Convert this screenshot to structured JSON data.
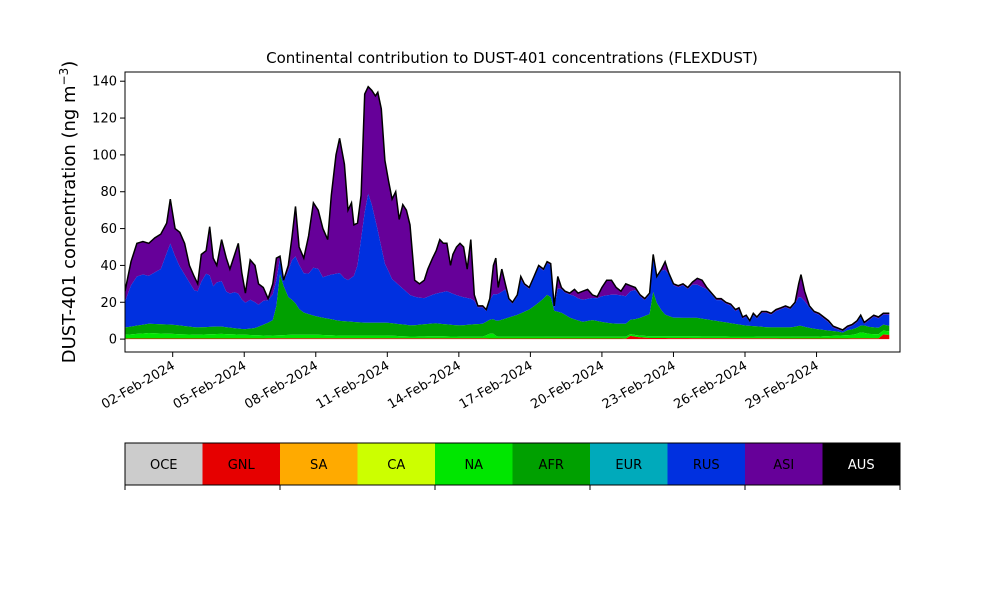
{
  "chart_data": {
    "type": "area",
    "stacked": true,
    "title": "Continental contribution to DUST-401 concentrations (FLEXDUST)",
    "ylabel_prefix": "DUST-401 concentration (ng m",
    "ylabel_sup": "−3",
    "ylabel_suffix": ")",
    "xlabel": "",
    "ylim": [
      -7,
      145
    ],
    "yticks": [
      0,
      20,
      40,
      60,
      80,
      100,
      120,
      140
    ],
    "x_start": "2024-01-31",
    "x_end": "2024-03-02",
    "xlim": [
      "2024-01-31T00:00",
      "2024-03-03T12:00"
    ],
    "xticks": [
      "02-Feb-2024",
      "05-Feb-2024",
      "08-Feb-2024",
      "11-Feb-2024",
      "14-Feb-2024",
      "17-Feb-2024",
      "20-Feb-2024",
      "23-Feb-2024",
      "26-Feb-2024",
      "29-Feb-2024"
    ],
    "xtick_dates": [
      "2024-02-02",
      "2024-02-05",
      "2024-02-08",
      "2024-02-11",
      "2024-02-14",
      "2024-02-17",
      "2024-02-20",
      "2024-02-23",
      "2024-02-26",
      "2024-02-29"
    ],
    "legend_placement": "separate colorbar below plot",
    "total": [
      [
        0,
        26
      ],
      [
        0.25,
        42
      ],
      [
        0.5,
        52
      ],
      [
        0.75,
        53
      ],
      [
        1,
        52
      ],
      [
        1.25,
        55
      ],
      [
        1.5,
        57
      ],
      [
        1.75,
        63
      ],
      [
        1.9,
        76
      ],
      [
        2.1,
        60
      ],
      [
        2.3,
        58
      ],
      [
        2.5,
        52
      ],
      [
        2.7,
        40
      ],
      [
        2.9,
        34
      ],
      [
        3.05,
        30
      ],
      [
        3.2,
        46
      ],
      [
        3.4,
        48
      ],
      [
        3.55,
        61
      ],
      [
        3.7,
        44
      ],
      [
        3.85,
        40
      ],
      [
        4.05,
        54
      ],
      [
        4.25,
        44
      ],
      [
        4.4,
        38
      ],
      [
        4.6,
        46
      ],
      [
        4.75,
        52
      ],
      [
        4.9,
        36
      ],
      [
        5.05,
        25
      ],
      [
        5.25,
        43
      ],
      [
        5.45,
        40
      ],
      [
        5.6,
        30
      ],
      [
        5.8,
        28
      ],
      [
        6.0,
        22
      ],
      [
        6.2,
        30
      ],
      [
        6.35,
        44
      ],
      [
        6.5,
        45
      ],
      [
        6.65,
        32
      ],
      [
        6.85,
        40
      ],
      [
        7.0,
        55
      ],
      [
        7.15,
        72
      ],
      [
        7.3,
        50
      ],
      [
        7.5,
        44
      ],
      [
        7.7,
        56
      ],
      [
        7.9,
        74
      ],
      [
        8.1,
        70
      ],
      [
        8.3,
        60
      ],
      [
        8.5,
        54
      ],
      [
        8.65,
        78
      ],
      [
        8.85,
        100
      ],
      [
        9.0,
        109
      ],
      [
        9.2,
        95
      ],
      [
        9.35,
        70
      ],
      [
        9.5,
        74
      ],
      [
        9.6,
        62
      ],
      [
        9.75,
        63
      ],
      [
        9.9,
        78
      ],
      [
        10.05,
        133
      ],
      [
        10.2,
        137
      ],
      [
        10.35,
        135
      ],
      [
        10.5,
        132
      ],
      [
        10.6,
        134
      ],
      [
        10.75,
        125
      ],
      [
        10.9,
        97
      ],
      [
        11.05,
        86
      ],
      [
        11.2,
        76
      ],
      [
        11.35,
        80
      ],
      [
        11.5,
        65
      ],
      [
        11.65,
        73
      ],
      [
        11.8,
        70
      ],
      [
        11.95,
        62
      ],
      [
        12.15,
        32
      ],
      [
        12.35,
        30
      ],
      [
        12.55,
        32
      ],
      [
        12.7,
        38
      ],
      [
        12.9,
        44
      ],
      [
        13.05,
        48
      ],
      [
        13.2,
        54
      ],
      [
        13.35,
        52
      ],
      [
        13.5,
        52
      ],
      [
        13.65,
        40
      ],
      [
        13.75,
        46
      ],
      [
        13.9,
        50
      ],
      [
        14.05,
        52
      ],
      [
        14.2,
        50
      ],
      [
        14.35,
        38
      ],
      [
        14.5,
        54
      ],
      [
        14.65,
        24
      ],
      [
        14.8,
        18
      ],
      [
        15.0,
        18
      ],
      [
        15.15,
        16
      ],
      [
        15.3,
        22
      ],
      [
        15.45,
        40
      ],
      [
        15.55,
        44
      ],
      [
        15.65,
        28
      ],
      [
        15.8,
        38
      ],
      [
        15.95,
        30
      ],
      [
        16.1,
        22
      ],
      [
        16.25,
        20
      ],
      [
        16.45,
        24
      ],
      [
        16.6,
        34
      ],
      [
        16.75,
        30
      ],
      [
        16.95,
        28
      ],
      [
        17.15,
        34
      ],
      [
        17.35,
        40
      ],
      [
        17.55,
        38
      ],
      [
        17.7,
        42
      ],
      [
        17.85,
        41
      ],
      [
        18.0,
        18
      ],
      [
        18.15,
        34
      ],
      [
        18.3,
        28
      ],
      [
        18.45,
        26
      ],
      [
        18.65,
        25
      ],
      [
        18.85,
        27
      ],
      [
        19.0,
        25
      ],
      [
        19.2,
        26
      ],
      [
        19.4,
        27
      ],
      [
        19.6,
        24
      ],
      [
        19.8,
        23
      ],
      [
        20.0,
        28
      ],
      [
        20.2,
        32
      ],
      [
        20.4,
        32
      ],
      [
        20.6,
        28
      ],
      [
        20.8,
        26
      ],
      [
        21.0,
        30
      ],
      [
        21.2,
        29
      ],
      [
        21.4,
        28
      ],
      [
        21.6,
        24
      ],
      [
        21.8,
        22
      ],
      [
        22.0,
        25
      ],
      [
        22.15,
        46
      ],
      [
        22.3,
        34
      ],
      [
        22.5,
        38
      ],
      [
        22.65,
        42
      ],
      [
        22.8,
        36
      ],
      [
        23.0,
        30
      ],
      [
        23.2,
        29
      ],
      [
        23.4,
        30
      ],
      [
        23.6,
        28
      ],
      [
        23.8,
        31
      ],
      [
        24.0,
        33
      ],
      [
        24.2,
        32
      ],
      [
        24.4,
        28
      ],
      [
        24.6,
        25
      ],
      [
        24.8,
        22
      ],
      [
        25.0,
        22
      ],
      [
        25.2,
        20
      ],
      [
        25.4,
        19
      ],
      [
        25.6,
        16
      ],
      [
        25.75,
        17
      ],
      [
        25.9,
        12
      ],
      [
        26.05,
        13
      ],
      [
        26.2,
        10
      ],
      [
        26.35,
        14
      ],
      [
        26.5,
        12
      ],
      [
        26.7,
        15
      ],
      [
        26.9,
        15
      ],
      [
        27.1,
        14
      ],
      [
        27.3,
        16
      ],
      [
        27.5,
        17
      ],
      [
        27.7,
        18
      ],
      [
        27.9,
        17
      ],
      [
        28.1,
        20
      ],
      [
        28.25,
        30
      ],
      [
        28.35,
        35
      ],
      [
        28.5,
        26
      ],
      [
        28.7,
        18
      ],
      [
        28.9,
        15
      ],
      [
        29.1,
        14
      ],
      [
        29.3,
        12
      ],
      [
        29.5,
        10
      ],
      [
        29.7,
        7
      ],
      [
        29.9,
        6
      ],
      [
        30.1,
        5
      ],
      [
        30.3,
        7
      ],
      [
        30.5,
        8
      ],
      [
        30.7,
        10
      ],
      [
        30.85,
        13
      ],
      [
        31.0,
        9
      ],
      [
        31.2,
        11
      ],
      [
        31.4,
        13
      ],
      [
        31.6,
        12
      ],
      [
        31.8,
        14
      ],
      [
        32.0,
        14
      ],
      [
        32.05,
        14
      ]
    ],
    "series": [
      {
        "name": "GNL",
        "color": "#e60000",
        "points": [
          [
            0,
            0.3
          ],
          [
            10.5,
            0.4
          ],
          [
            21.0,
            0.3
          ],
          [
            21.1,
            2
          ],
          [
            21.5,
            1
          ],
          [
            22.0,
            0.6
          ],
          [
            22.2,
            0.6
          ],
          [
            26,
            0.4
          ],
          [
            29,
            0.3
          ],
          [
            31.6,
            0.4
          ],
          [
            31.8,
            2.5
          ],
          [
            32.05,
            2.2
          ]
        ]
      },
      {
        "name": "NA",
        "color": "#00e600",
        "points": [
          [
            0,
            2
          ],
          [
            1,
            3
          ],
          [
            2,
            2.5
          ],
          [
            3,
            2
          ],
          [
            4,
            2.5
          ],
          [
            5,
            2
          ],
          [
            6,
            1.5
          ],
          [
            7,
            2
          ],
          [
            8,
            2
          ],
          [
            9,
            1.5
          ],
          [
            10,
            1.5
          ],
          [
            11,
            1.5
          ],
          [
            12,
            1
          ],
          [
            13,
            1.2
          ],
          [
            14,
            1
          ],
          [
            15,
            1
          ],
          [
            15.4,
            3
          ],
          [
            15.6,
            1
          ],
          [
            17,
            1
          ],
          [
            20,
            1
          ],
          [
            22,
            1
          ],
          [
            26,
            1
          ],
          [
            29,
            1
          ],
          [
            30.6,
            2
          ],
          [
            30.9,
            3.5
          ],
          [
            31.1,
            2.5
          ],
          [
            32.05,
            2
          ]
        ]
      },
      {
        "name": "AFR",
        "color": "#00a000",
        "points": [
          [
            0,
            4
          ],
          [
            1,
            5
          ],
          [
            2,
            5
          ],
          [
            3,
            4
          ],
          [
            4,
            4
          ],
          [
            5,
            3
          ],
          [
            5.5,
            4
          ],
          [
            6.0,
            7
          ],
          [
            6.3,
            9
          ],
          [
            6.45,
            30
          ],
          [
            6.55,
            36
          ],
          [
            6.7,
            22
          ],
          [
            6.9,
            20
          ],
          [
            7.1,
            18
          ],
          [
            7.3,
            14
          ],
          [
            7.5,
            12
          ],
          [
            8,
            10
          ],
          [
            9,
            8
          ],
          [
            10,
            7
          ],
          [
            11,
            7
          ],
          [
            12,
            6
          ],
          [
            13,
            7
          ],
          [
            14,
            6
          ],
          [
            15,
            7
          ],
          [
            15.5,
            8
          ],
          [
            16,
            10
          ],
          [
            16.5,
            12
          ],
          [
            17,
            15
          ],
          [
            17.5,
            20
          ],
          [
            17.8,
            24
          ],
          [
            18.0,
            14
          ],
          [
            18.3,
            13
          ],
          [
            18.7,
            10
          ],
          [
            19.2,
            8
          ],
          [
            19.6,
            9
          ],
          [
            20,
            8
          ],
          [
            20.5,
            7
          ],
          [
            21,
            7
          ],
          [
            21.5,
            9
          ],
          [
            22,
            12
          ],
          [
            22.15,
            24
          ],
          [
            22.3,
            18
          ],
          [
            22.6,
            12
          ],
          [
            23,
            10
          ],
          [
            24,
            10
          ],
          [
            25,
            8
          ],
          [
            26,
            6
          ],
          [
            27,
            5
          ],
          [
            28,
            5
          ],
          [
            28.3,
            6
          ],
          [
            28.6,
            5
          ],
          [
            29.5,
            3
          ],
          [
            30,
            2
          ],
          [
            30.5,
            3
          ],
          [
            31,
            4
          ],
          [
            32.05,
            3
          ]
        ]
      },
      {
        "name": "RUS",
        "color": "#0030e0",
        "points": [
          [
            0,
            14
          ],
          [
            0.3,
            24
          ],
          [
            0.6,
            28
          ],
          [
            1,
            26
          ],
          [
            1.5,
            30
          ],
          [
            1.9,
            44
          ],
          [
            2.2,
            34
          ],
          [
            2.6,
            26
          ],
          [
            3.0,
            18
          ],
          [
            3.3,
            28
          ],
          [
            3.5,
            30
          ],
          [
            3.7,
            22
          ],
          [
            4.0,
            26
          ],
          [
            4.3,
            18
          ],
          [
            4.7,
            20
          ],
          [
            5.0,
            14
          ],
          [
            5.3,
            16
          ],
          [
            5.6,
            12
          ],
          [
            6.0,
            14
          ],
          [
            6.3,
            14
          ],
          [
            6.5,
            14
          ],
          [
            6.8,
            12
          ],
          [
            7.1,
            26
          ],
          [
            7.3,
            24
          ],
          [
            7.6,
            20
          ],
          [
            8.0,
            28
          ],
          [
            8.3,
            22
          ],
          [
            8.6,
            24
          ],
          [
            9.0,
            26
          ],
          [
            9.3,
            22
          ],
          [
            9.7,
            26
          ],
          [
            10.05,
            60
          ],
          [
            10.2,
            70
          ],
          [
            10.35,
            64
          ],
          [
            10.6,
            50
          ],
          [
            10.9,
            32
          ],
          [
            11.2,
            24
          ],
          [
            11.6,
            20
          ],
          [
            12.0,
            16
          ],
          [
            12.5,
            14
          ],
          [
            13.0,
            16
          ],
          [
            13.5,
            18
          ],
          [
            14.0,
            16
          ],
          [
            14.5,
            14
          ],
          [
            15.0,
            10
          ],
          [
            15.5,
            14
          ],
          [
            16.0,
            16
          ],
          [
            16.5,
            18
          ],
          [
            17.0,
            20
          ],
          [
            17.5,
            22
          ],
          [
            17.8,
            22
          ],
          [
            18.0,
            12
          ],
          [
            18.5,
            14
          ],
          [
            19.0,
            12
          ],
          [
            19.6,
            12
          ],
          [
            20.0,
            14
          ],
          [
            20.5,
            16
          ],
          [
            21.0,
            15
          ],
          [
            21.5,
            16
          ],
          [
            22.0,
            18
          ],
          [
            22.15,
            30
          ],
          [
            22.3,
            26
          ],
          [
            22.7,
            24
          ],
          [
            23.0,
            20
          ],
          [
            23.5,
            18
          ],
          [
            24.0,
            18
          ],
          [
            24.5,
            16
          ],
          [
            25.0,
            14
          ],
          [
            25.5,
            12
          ],
          [
            26.0,
            10
          ],
          [
            26.5,
            10
          ],
          [
            27.0,
            11
          ],
          [
            27.5,
            12
          ],
          [
            28.0,
            14
          ],
          [
            28.3,
            16
          ],
          [
            28.6,
            13
          ],
          [
            29.0,
            10
          ],
          [
            29.5,
            7
          ],
          [
            30.0,
            5
          ],
          [
            30.5,
            6
          ],
          [
            31.0,
            8
          ],
          [
            31.5,
            10
          ],
          [
            32.05,
            12
          ]
        ]
      },
      {
        "name": "ASI",
        "color": "#660099",
        "points": []
      }
    ],
    "colorbar_categories": [
      "OCE",
      "GNL",
      "SA",
      "CA",
      "NA",
      "AFR",
      "EUR",
      "RUS",
      "ASI",
      "AUS"
    ],
    "colorbar_colors": [
      "#cccccc",
      "#e60000",
      "#ffaa00",
      "#ccff00",
      "#00e600",
      "#00a000",
      "#00aabb",
      "#0030e0",
      "#660099",
      "#000000"
    ],
    "colorbar_text_colors": [
      "#000000",
      "#000000",
      "#000000",
      "#000000",
      "#000000",
      "#000000",
      "#000000",
      "#000000",
      "#000000",
      "#ffffff"
    ]
  }
}
